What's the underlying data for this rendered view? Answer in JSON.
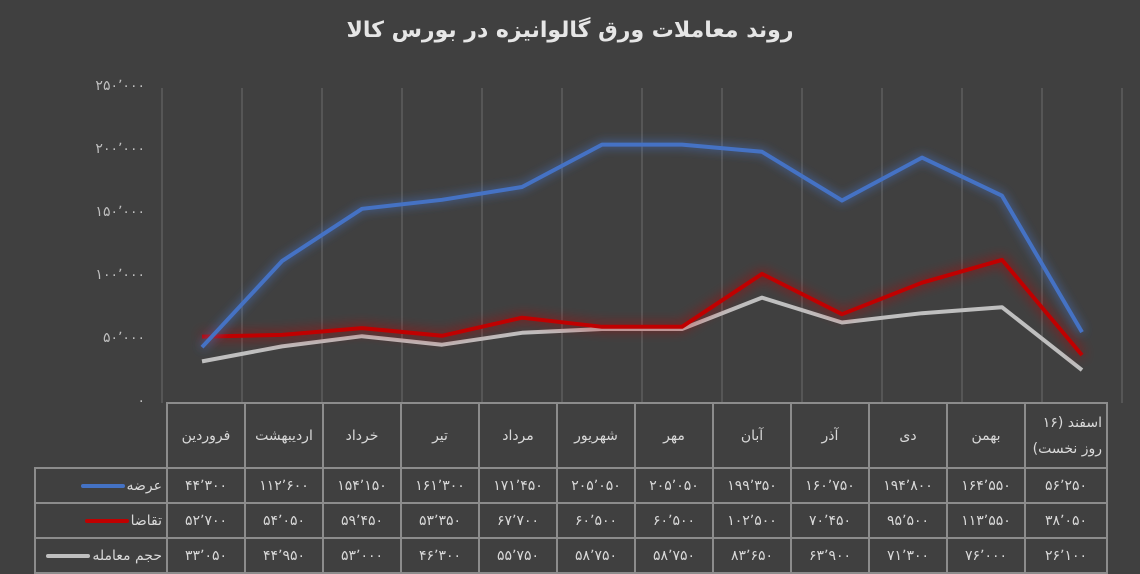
{
  "title": "روند معاملات ورق گالوانیزه در بورس کالا",
  "colors": {
    "background": "#404040",
    "supply": "#4472c4",
    "demand": "#c00000",
    "volume": "#bfbfbf",
    "grid": "#5e5e5e"
  },
  "y_axis": {
    "ticks": [
      "۲۵۰٬۰۰۰",
      "۲۰۰٬۰۰۰",
      "۱۵۰٬۰۰۰",
      "۱۰۰٬۰۰۰",
      "۵۰٬۰۰۰",
      "۰"
    ]
  },
  "legend": {
    "supply": "عرضه",
    "demand": "تقاضا",
    "volume": "حجم معامله"
  },
  "months": [
    "فروردین",
    "اردیبهشت",
    "خرداد",
    "تیر",
    "مرداد",
    "شهریور",
    "مهر",
    "آبان",
    "آذر",
    "دی",
    "بهمن",
    "اسفند (۱۶ روز نخست)"
  ],
  "table": {
    "supply": [
      "۴۴٬۳۰۰",
      "۱۱۲٬۶۰۰",
      "۱۵۴٬۱۵۰",
      "۱۶۱٬۳۰۰",
      "۱۷۱٬۴۵۰",
      "۲۰۵٬۰۵۰",
      "۲۰۵٬۰۵۰",
      "۱۹۹٬۳۵۰",
      "۱۶۰٬۷۵۰",
      "۱۹۴٬۸۰۰",
      "۱۶۴٬۵۵۰",
      "۵۶٬۲۵۰"
    ],
    "demand": [
      "۵۲٬۷۰۰",
      "۵۴٬۰۵۰",
      "۵۹٬۴۵۰",
      "۵۳٬۳۵۰",
      "۶۷٬۷۰۰",
      "۶۰٬۵۰۰",
      "۶۰٬۵۰۰",
      "۱۰۲٬۵۰۰",
      "۷۰٬۴۵۰",
      "۹۵٬۵۰۰",
      "۱۱۳٬۵۵۰",
      "۳۸٬۰۵۰"
    ],
    "volume": [
      "۳۳٬۰۵۰",
      "۴۴٬۹۵۰",
      "۵۳٬۰۰۰",
      "۴۶٬۳۰۰",
      "۵۵٬۷۵۰",
      "۵۸٬۷۵۰",
      "۵۸٬۷۵۰",
      "۸۳٬۶۵۰",
      "۶۳٬۹۰۰",
      "۷۱٬۳۰۰",
      "۷۶٬۰۰۰",
      "۲۶٬۱۰۰"
    ]
  },
  "chart_data": {
    "type": "line",
    "title": "روند معاملات ورق گالوانیزه در بورس کالا",
    "xlabel": "",
    "ylabel": "",
    "ylim": [
      0,
      250000
    ],
    "grid": "vertical category separators",
    "legend_position": "data table (bottom-left)",
    "categories": [
      "فروردین",
      "اردیبهشت",
      "خرداد",
      "تیر",
      "مرداد",
      "شهریور",
      "مهر",
      "آبان",
      "آذر",
      "دی",
      "بهمن",
      "اسفند (۱۶ روز نخست)"
    ],
    "y_tick_labels": [
      "۰",
      "۵۰٬۰۰۰",
      "۱۰۰٬۰۰۰",
      "۱۵۰٬۰۰۰",
      "۲۰۰٬۰۰۰",
      "۲۵۰٬۰۰۰"
    ],
    "series": [
      {
        "name": "عرضه",
        "color": "#4472c4",
        "values": [
          44300,
          112600,
          154150,
          161300,
          171450,
          205050,
          205050,
          199350,
          160750,
          194800,
          164550,
          56250
        ]
      },
      {
        "name": "تقاضا",
        "color": "#c00000",
        "values": [
          52700,
          54050,
          59450,
          53350,
          67700,
          60500,
          60500,
          102500,
          70450,
          95500,
          113550,
          38050
        ]
      },
      {
        "name": "حجم معامله",
        "color": "#bfbfbf",
        "values": [
          33050,
          44950,
          53000,
          46300,
          55750,
          58750,
          58750,
          83650,
          63900,
          71300,
          76000,
          26100
        ]
      }
    ]
  }
}
